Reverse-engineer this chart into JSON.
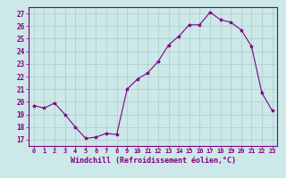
{
  "x": [
    0,
    1,
    2,
    3,
    4,
    5,
    6,
    7,
    8,
    9,
    10,
    11,
    12,
    13,
    14,
    15,
    16,
    17,
    18,
    19,
    20,
    21,
    22,
    23
  ],
  "y": [
    19.7,
    19.5,
    19.9,
    19.0,
    18.0,
    17.1,
    17.2,
    17.5,
    17.4,
    21.0,
    21.8,
    22.3,
    23.2,
    24.5,
    25.2,
    26.1,
    26.1,
    27.1,
    26.5,
    26.3,
    25.7,
    24.4,
    20.7,
    19.3
  ],
  "line_color": "#800080",
  "marker": "*",
  "marker_size": 3,
  "bg_color": "#cce8e8",
  "grid_color": "#aacccc",
  "xlabel": "Windchill (Refroidissement éolien,°C)",
  "ylabel_ticks": [
    17,
    18,
    19,
    20,
    21,
    22,
    23,
    24,
    25,
    26,
    27
  ],
  "xlim": [
    -0.5,
    23.5
  ],
  "ylim": [
    16.5,
    27.5
  ],
  "axis_color": "#800080",
  "tick_color": "#800080",
  "label_color": "#800080"
}
